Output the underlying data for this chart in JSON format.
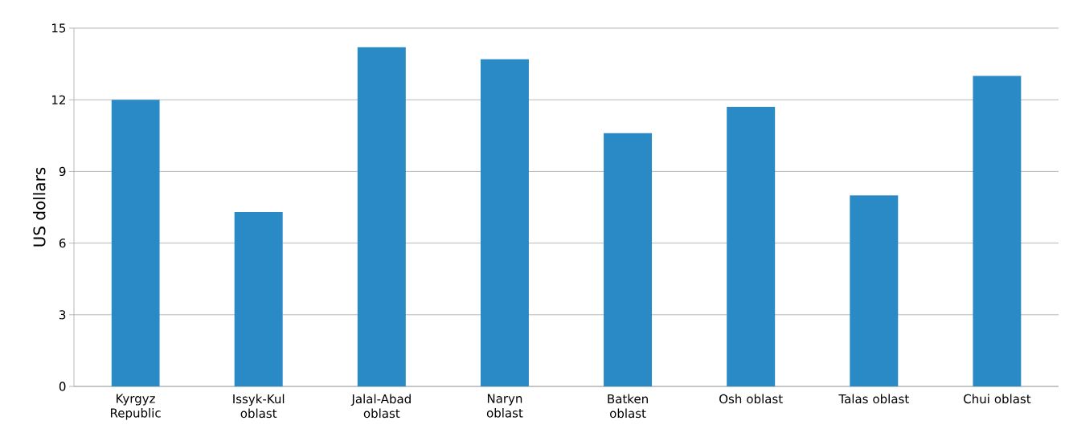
{
  "chart_data": {
    "type": "bar",
    "ylabel": "US dollars",
    "categories": [
      "Kyrgyz Republic",
      "Issyk-Kul oblast",
      "Jalal-Abad oblast",
      "Naryn oblast",
      "Batken oblast",
      "Osh oblast",
      "Talas oblast",
      "Chui oblast"
    ],
    "values": [
      12.0,
      7.3,
      14.2,
      13.7,
      10.6,
      11.7,
      8.0,
      13.0
    ],
    "color": "#2a8ac6",
    "ylim": [
      0,
      15
    ],
    "yticks": [
      0,
      3,
      6,
      9,
      12,
      15
    ],
    "grid": "y"
  }
}
